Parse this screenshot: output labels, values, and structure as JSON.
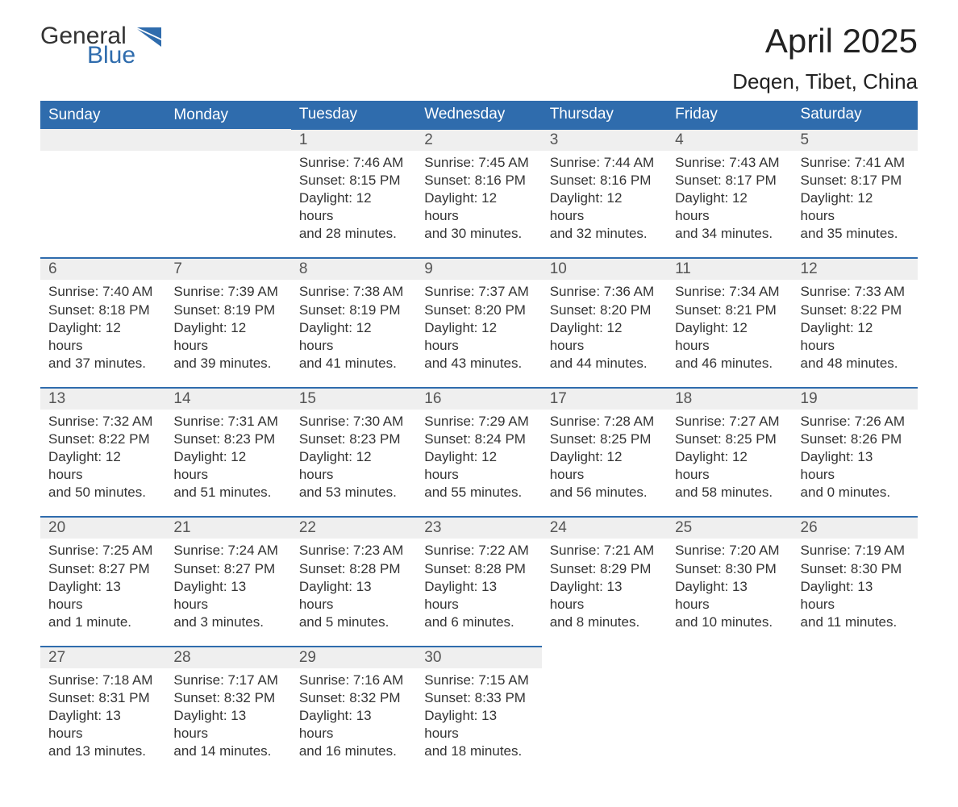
{
  "logo": {
    "general": "General",
    "blue": "Blue"
  },
  "title": "April 2025",
  "location": "Deqen, Tibet, China",
  "colors": {
    "header_bg": "#2f6cad",
    "header_text": "#ffffff",
    "daynum_bg": "#efefef",
    "row_border": "#2f6cad",
    "body_text": "#333333",
    "logo_blue": "#2f6cad"
  },
  "weekdays": [
    "Sunday",
    "Monday",
    "Tuesday",
    "Wednesday",
    "Thursday",
    "Friday",
    "Saturday"
  ],
  "weeks": [
    {
      "nums": [
        "",
        "",
        "1",
        "2",
        "3",
        "4",
        "5"
      ],
      "cells": [
        null,
        null,
        {
          "sunrise": "Sunrise: 7:46 AM",
          "sunset": "Sunset: 8:15 PM",
          "day1": "Daylight: 12 hours",
          "day2": "and 28 minutes."
        },
        {
          "sunrise": "Sunrise: 7:45 AM",
          "sunset": "Sunset: 8:16 PM",
          "day1": "Daylight: 12 hours",
          "day2": "and 30 minutes."
        },
        {
          "sunrise": "Sunrise: 7:44 AM",
          "sunset": "Sunset: 8:16 PM",
          "day1": "Daylight: 12 hours",
          "day2": "and 32 minutes."
        },
        {
          "sunrise": "Sunrise: 7:43 AM",
          "sunset": "Sunset: 8:17 PM",
          "day1": "Daylight: 12 hours",
          "day2": "and 34 minutes."
        },
        {
          "sunrise": "Sunrise: 7:41 AM",
          "sunset": "Sunset: 8:17 PM",
          "day1": "Daylight: 12 hours",
          "day2": "and 35 minutes."
        }
      ]
    },
    {
      "nums": [
        "6",
        "7",
        "8",
        "9",
        "10",
        "11",
        "12"
      ],
      "cells": [
        {
          "sunrise": "Sunrise: 7:40 AM",
          "sunset": "Sunset: 8:18 PM",
          "day1": "Daylight: 12 hours",
          "day2": "and 37 minutes."
        },
        {
          "sunrise": "Sunrise: 7:39 AM",
          "sunset": "Sunset: 8:19 PM",
          "day1": "Daylight: 12 hours",
          "day2": "and 39 minutes."
        },
        {
          "sunrise": "Sunrise: 7:38 AM",
          "sunset": "Sunset: 8:19 PM",
          "day1": "Daylight: 12 hours",
          "day2": "and 41 minutes."
        },
        {
          "sunrise": "Sunrise: 7:37 AM",
          "sunset": "Sunset: 8:20 PM",
          "day1": "Daylight: 12 hours",
          "day2": "and 43 minutes."
        },
        {
          "sunrise": "Sunrise: 7:36 AM",
          "sunset": "Sunset: 8:20 PM",
          "day1": "Daylight: 12 hours",
          "day2": "and 44 minutes."
        },
        {
          "sunrise": "Sunrise: 7:34 AM",
          "sunset": "Sunset: 8:21 PM",
          "day1": "Daylight: 12 hours",
          "day2": "and 46 minutes."
        },
        {
          "sunrise": "Sunrise: 7:33 AM",
          "sunset": "Sunset: 8:22 PM",
          "day1": "Daylight: 12 hours",
          "day2": "and 48 minutes."
        }
      ]
    },
    {
      "nums": [
        "13",
        "14",
        "15",
        "16",
        "17",
        "18",
        "19"
      ],
      "cells": [
        {
          "sunrise": "Sunrise: 7:32 AM",
          "sunset": "Sunset: 8:22 PM",
          "day1": "Daylight: 12 hours",
          "day2": "and 50 minutes."
        },
        {
          "sunrise": "Sunrise: 7:31 AM",
          "sunset": "Sunset: 8:23 PM",
          "day1": "Daylight: 12 hours",
          "day2": "and 51 minutes."
        },
        {
          "sunrise": "Sunrise: 7:30 AM",
          "sunset": "Sunset: 8:23 PM",
          "day1": "Daylight: 12 hours",
          "day2": "and 53 minutes."
        },
        {
          "sunrise": "Sunrise: 7:29 AM",
          "sunset": "Sunset: 8:24 PM",
          "day1": "Daylight: 12 hours",
          "day2": "and 55 minutes."
        },
        {
          "sunrise": "Sunrise: 7:28 AM",
          "sunset": "Sunset: 8:25 PM",
          "day1": "Daylight: 12 hours",
          "day2": "and 56 minutes."
        },
        {
          "sunrise": "Sunrise: 7:27 AM",
          "sunset": "Sunset: 8:25 PM",
          "day1": "Daylight: 12 hours",
          "day2": "and 58 minutes."
        },
        {
          "sunrise": "Sunrise: 7:26 AM",
          "sunset": "Sunset: 8:26 PM",
          "day1": "Daylight: 13 hours",
          "day2": "and 0 minutes."
        }
      ]
    },
    {
      "nums": [
        "20",
        "21",
        "22",
        "23",
        "24",
        "25",
        "26"
      ],
      "cells": [
        {
          "sunrise": "Sunrise: 7:25 AM",
          "sunset": "Sunset: 8:27 PM",
          "day1": "Daylight: 13 hours",
          "day2": "and 1 minute."
        },
        {
          "sunrise": "Sunrise: 7:24 AM",
          "sunset": "Sunset: 8:27 PM",
          "day1": "Daylight: 13 hours",
          "day2": "and 3 minutes."
        },
        {
          "sunrise": "Sunrise: 7:23 AM",
          "sunset": "Sunset: 8:28 PM",
          "day1": "Daylight: 13 hours",
          "day2": "and 5 minutes."
        },
        {
          "sunrise": "Sunrise: 7:22 AM",
          "sunset": "Sunset: 8:28 PM",
          "day1": "Daylight: 13 hours",
          "day2": "and 6 minutes."
        },
        {
          "sunrise": "Sunrise: 7:21 AM",
          "sunset": "Sunset: 8:29 PM",
          "day1": "Daylight: 13 hours",
          "day2": "and 8 minutes."
        },
        {
          "sunrise": "Sunrise: 7:20 AM",
          "sunset": "Sunset: 8:30 PM",
          "day1": "Daylight: 13 hours",
          "day2": "and 10 minutes."
        },
        {
          "sunrise": "Sunrise: 7:19 AM",
          "sunset": "Sunset: 8:30 PM",
          "day1": "Daylight: 13 hours",
          "day2": "and 11 minutes."
        }
      ]
    },
    {
      "nums": [
        "27",
        "28",
        "29",
        "30",
        "",
        "",
        ""
      ],
      "cells": [
        {
          "sunrise": "Sunrise: 7:18 AM",
          "sunset": "Sunset: 8:31 PM",
          "day1": "Daylight: 13 hours",
          "day2": "and 13 minutes."
        },
        {
          "sunrise": "Sunrise: 7:17 AM",
          "sunset": "Sunset: 8:32 PM",
          "day1": "Daylight: 13 hours",
          "day2": "and 14 minutes."
        },
        {
          "sunrise": "Sunrise: 7:16 AM",
          "sunset": "Sunset: 8:32 PM",
          "day1": "Daylight: 13 hours",
          "day2": "and 16 minutes."
        },
        {
          "sunrise": "Sunrise: 7:15 AM",
          "sunset": "Sunset: 8:33 PM",
          "day1": "Daylight: 13 hours",
          "day2": "and 18 minutes."
        },
        null,
        null,
        null
      ]
    }
  ]
}
